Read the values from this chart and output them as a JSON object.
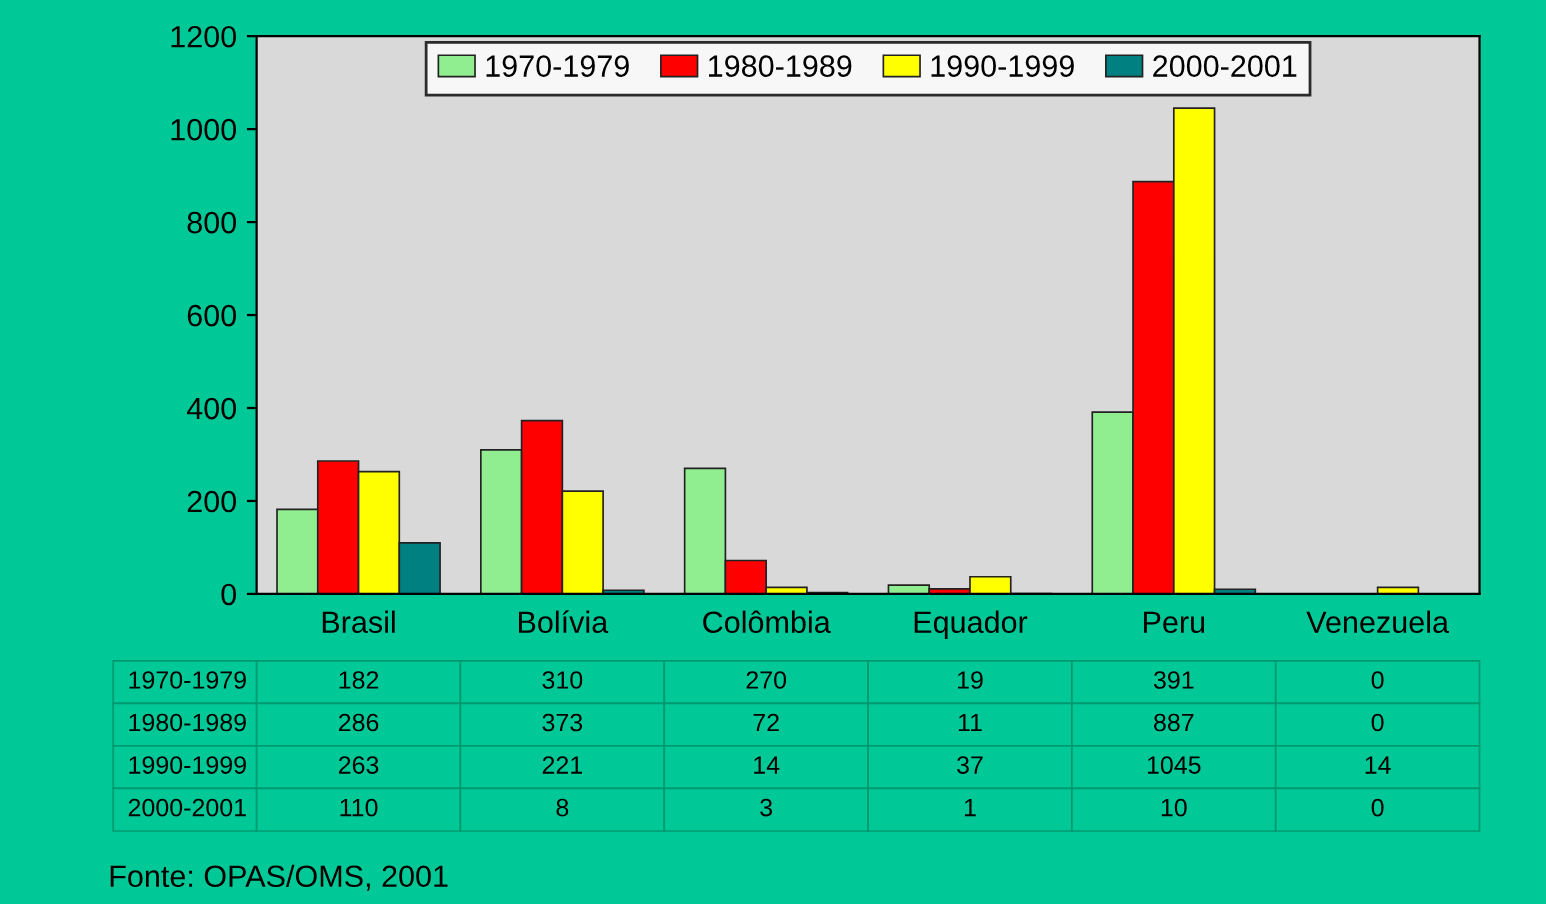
{
  "chart_data": {
    "type": "bar",
    "categories": [
      "Brasil",
      "Bolívia",
      "Colômbia",
      "Equador",
      "Peru",
      "Venezuela"
    ],
    "series": [
      {
        "name": "1970-1979",
        "color": "#90ee90",
        "values": [
          182,
          310,
          270,
          19,
          391,
          0
        ]
      },
      {
        "name": "1980-1989",
        "color": "#ff0000",
        "values": [
          286,
          373,
          72,
          11,
          887,
          0
        ]
      },
      {
        "name": "1990-1999",
        "color": "#ffff00",
        "values": [
          263,
          221,
          14,
          37,
          1045,
          14
        ]
      },
      {
        "name": "2000-2001",
        "color": "#008080",
        "values": [
          110,
          8,
          3,
          1,
          10,
          0
        ]
      }
    ],
    "ylim": [
      0,
      1200
    ],
    "yticks": [
      0,
      200,
      400,
      600,
      800,
      1000,
      1200
    ],
    "grid": false,
    "legend": "top",
    "data_labels": true,
    "annotations": [
      "Fonte: OPAS/OMS, 2001"
    ]
  }
}
